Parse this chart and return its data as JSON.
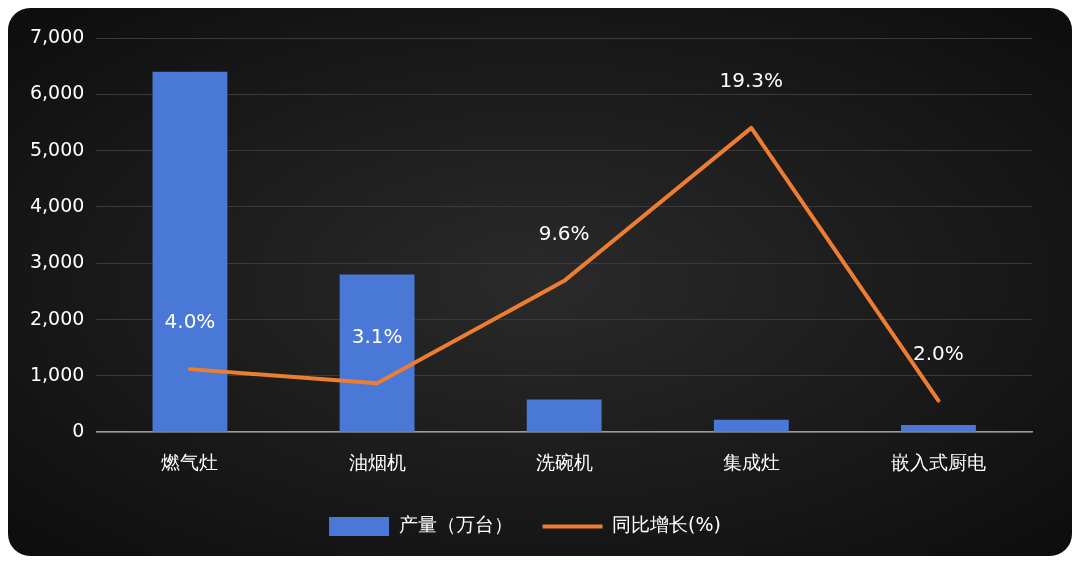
{
  "chart_data": {
    "type": "bar",
    "categories": [
      "燃气灶",
      "油烟机",
      "洗碗机",
      "集成灶",
      "嵌入式厨电"
    ],
    "series": [
      {
        "name": "产量（万台）",
        "color": "#4a78d6",
        "values": [
          6400,
          2800,
          580,
          220,
          130
        ]
      },
      {
        "name": "同比增长(%)",
        "type": "line",
        "axis": "y2",
        "color": "#ed7d31",
        "values": [
          4.0,
          3.1,
          9.6,
          19.3,
          2.0
        ],
        "value_labels": [
          "4.0%",
          "3.1%",
          "9.6%",
          "19.3%",
          "2.0%"
        ]
      }
    ],
    "ylim": [
      0,
      7000
    ],
    "yticks": [
      {
        "value": 0,
        "label": "0"
      },
      {
        "value": 1000,
        "label": "1,000"
      },
      {
        "value": 2000,
        "label": "2,000"
      },
      {
        "value": 3000,
        "label": "3,000"
      },
      {
        "value": 4000,
        "label": "4,000"
      },
      {
        "value": 5000,
        "label": "5,000"
      },
      {
        "value": 6000,
        "label": "6,000"
      },
      {
        "value": 7000,
        "label": "7,000"
      }
    ],
    "y2lim": [
      0,
      25
    ],
    "grid": "y",
    "legend": "bottom",
    "marker": "none",
    "line_style": "solid"
  }
}
